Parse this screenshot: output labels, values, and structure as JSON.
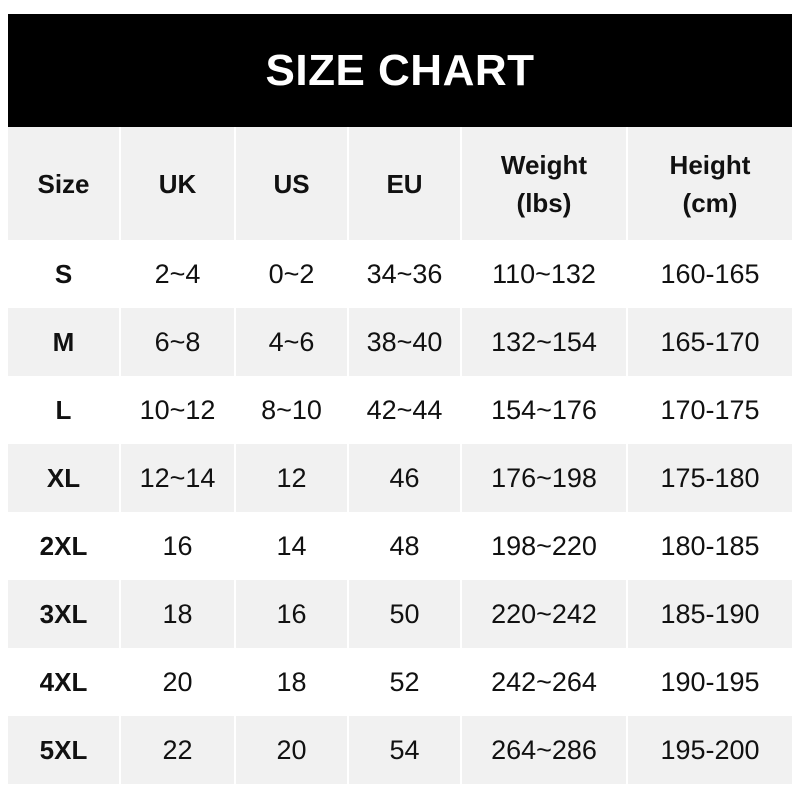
{
  "title": "SIZE CHART",
  "headers": [
    "Size",
    "UK",
    "US",
    "EU",
    "Weight\n(lbs)",
    "Height\n(cm)"
  ],
  "header_lines": [
    [
      "Size"
    ],
    [
      "UK"
    ],
    [
      "US"
    ],
    [
      "EU"
    ],
    [
      "Weight",
      "(lbs)"
    ],
    [
      "Height",
      "(cm)"
    ]
  ],
  "rows": [
    [
      "S",
      "2~4",
      "0~2",
      "34~36",
      "110~132",
      "160-165"
    ],
    [
      "M",
      "6~8",
      "4~6",
      "38~40",
      "132~154",
      "165-170"
    ],
    [
      "L",
      "10~12",
      "8~10",
      "42~44",
      "154~176",
      "170-175"
    ],
    [
      "XL",
      "12~14",
      "12",
      "46",
      "176~198",
      "175-180"
    ],
    [
      "2XL",
      "16",
      "14",
      "48",
      "198~220",
      "180-185"
    ],
    [
      "3XL",
      "18",
      "16",
      "50",
      "220~242",
      "185-190"
    ],
    [
      "4XL",
      "20",
      "18",
      "52",
      "242~264",
      "190-195"
    ],
    [
      "5XL",
      "22",
      "20",
      "54",
      "264~286",
      "195-200"
    ]
  ],
  "colors": {
    "title_bg": "#000000",
    "title_text": "#ffffff",
    "stripe": "#f1f1f1"
  }
}
